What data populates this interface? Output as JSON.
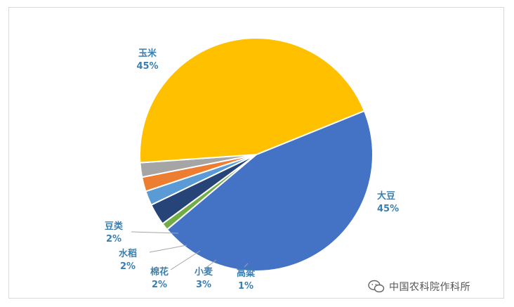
{
  "chart_data": {
    "type": "pie",
    "title": "",
    "slices": [
      {
        "name": "大豆",
        "value": 45,
        "label": "45%",
        "color": "#4472c4"
      },
      {
        "name": "高粱",
        "value": 1,
        "label": "1%",
        "color": "#70ad47"
      },
      {
        "name": "小麦",
        "value": 3,
        "label": "3%",
        "color": "#264478"
      },
      {
        "name": "棉花",
        "value": 2,
        "label": "2%",
        "color": "#5b9bd5"
      },
      {
        "name": "水稻",
        "value": 2,
        "label": "2%",
        "color": "#ed7d31"
      },
      {
        "name": "豆类",
        "value": 2,
        "label": "2%",
        "color": "#a5a5a5"
      },
      {
        "name": "玉米",
        "value": 45,
        "label": "45%",
        "color": "#ffc000"
      }
    ],
    "legend": "none",
    "label_color": "#3a7fb0"
  },
  "watermark": {
    "text": "中国农科院作科所",
    "icon": "wechat-icon"
  }
}
